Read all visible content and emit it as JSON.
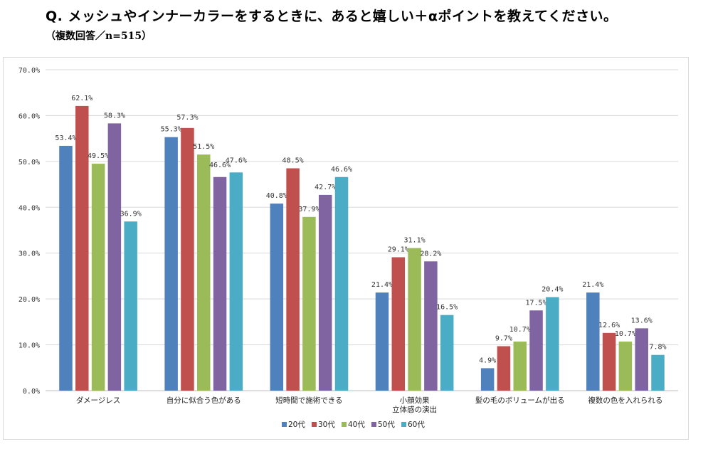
{
  "title": "Q. メッシュやインナーカラーをするときに、あると嬉しい＋αポイントを教えてください。",
  "subtitle": "（複数回答／n=515）",
  "chart_data": {
    "type": "bar",
    "categories": [
      [
        "ダメージレス"
      ],
      [
        "自分に似合う色がある"
      ],
      [
        "短時間で施術できる"
      ],
      [
        "小顔効果",
        "立体感の演出"
      ],
      [
        "髪の毛のボリュームが出る"
      ],
      [
        "複数の色を入れられる"
      ]
    ],
    "series": [
      {
        "name": "20代",
        "color": "#4f81bd",
        "values": [
          53.4,
          55.3,
          40.8,
          21.4,
          4.9,
          21.4
        ]
      },
      {
        "name": "30代",
        "color": "#c0504d",
        "values": [
          62.1,
          57.3,
          48.5,
          29.1,
          9.7,
          12.6
        ]
      },
      {
        "name": "40代",
        "color": "#9bbb59",
        "values": [
          49.5,
          51.5,
          37.9,
          31.1,
          10.7,
          10.7
        ]
      },
      {
        "name": "50代",
        "color": "#8064a2",
        "values": [
          58.3,
          46.6,
          42.7,
          28.2,
          17.5,
          13.6
        ]
      },
      {
        "name": "60代",
        "color": "#4bacc6",
        "values": [
          36.9,
          47.6,
          46.6,
          16.5,
          20.4,
          7.8
        ]
      }
    ],
    "ylim": [
      0,
      70
    ],
    "yticks": [
      "0.0%",
      "10.0%",
      "20.0%",
      "30.0%",
      "40.0%",
      "50.0%",
      "60.0%",
      "70.0%"
    ],
    "unit": "%",
    "grid": true,
    "legend_position": "bottom"
  }
}
